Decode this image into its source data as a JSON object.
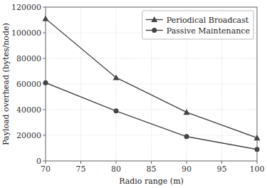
{
  "chart_data": {
    "type": "line",
    "x": [
      70,
      80,
      90,
      100
    ],
    "series": [
      {
        "name": "Periodical Broadcast",
        "color": "#444444",
        "marker": "triangle",
        "line_style": "solid",
        "values": [
          111000,
          65000,
          38000,
          18000
        ]
      },
      {
        "name": "Passive Maintenance",
        "color": "#444444",
        "marker": "circle",
        "line_style": "solid",
        "values": [
          61000,
          39000,
          19000,
          9000
        ]
      }
    ],
    "xlabel": "Radio range (m)",
    "ylabel": "Payload overhead (bytes/node)",
    "xlim": [
      70,
      100
    ],
    "ylim": [
      0,
      120000
    ],
    "xticks": [
      70,
      75,
      80,
      85,
      90,
      95,
      100
    ],
    "yticks": [
      0,
      20000,
      40000,
      60000,
      80000,
      100000,
      120000
    ],
    "grid": true,
    "legend": "upper right"
  }
}
